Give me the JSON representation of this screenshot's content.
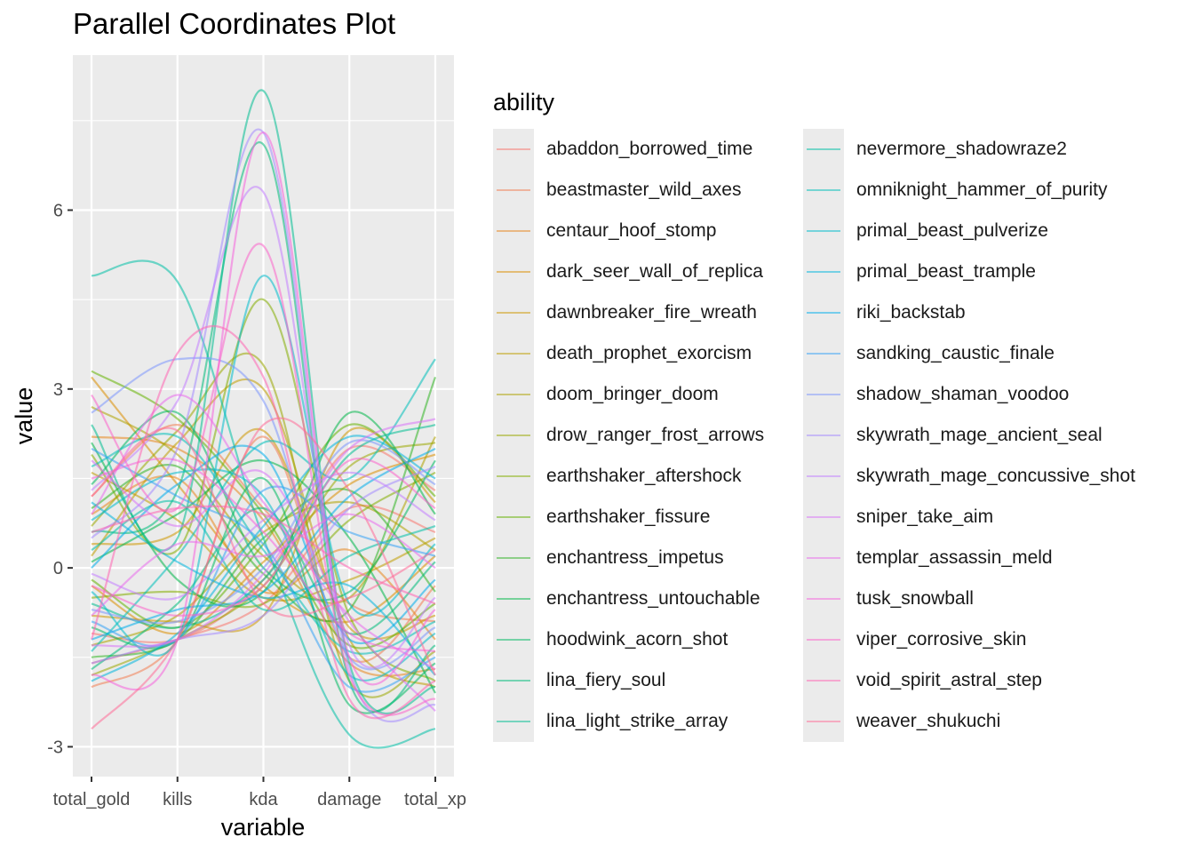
{
  "title": "Parallel Coordinates Plot",
  "chart_data": {
    "type": "line",
    "title": "Parallel Coordinates Plot",
    "xlabel": "variable",
    "ylabel": "value",
    "categories": [
      "total_gold",
      "kills",
      "kda",
      "damage",
      "total_xp"
    ],
    "yticks": [
      -3,
      0,
      3,
      6
    ],
    "ylim": [
      -3.5,
      8.6
    ],
    "grid": true,
    "legend": {
      "title": "ability",
      "placement": "right",
      "columns": 2,
      "entries": [
        "abaddon_borrowed_time",
        "beastmaster_wild_axes",
        "centaur_hoof_stomp",
        "dark_seer_wall_of_replica",
        "dawnbreaker_fire_wreath",
        "death_prophet_exorcism",
        "doom_bringer_doom",
        "drow_ranger_frost_arrows",
        "earthshaker_aftershock",
        "earthshaker_fissure",
        "enchantress_impetus",
        "enchantress_untouchable",
        "hoodwink_acorn_shot",
        "lina_fiery_soul",
        "lina_light_strike_array",
        "nevermore_shadowraze2",
        "omniknight_hammer_of_purity",
        "primal_beast_pulverize",
        "primal_beast_trample",
        "riki_backstab",
        "sandking_caustic_finale",
        "shadow_shaman_voodoo",
        "skywrath_mage_ancient_seal",
        "skywrath_mage_concussive_shot",
        "sniper_take_aim",
        "templar_assassin_meld",
        "tusk_snowball",
        "viper_corrosive_skin",
        "void_spirit_astral_step",
        "weaver_shukuchi"
      ]
    },
    "colors": [
      "#F8766D",
      "#F27D52",
      "#E7861B",
      "#DB8E00",
      "#CE9700",
      "#BF9D00",
      "#AEA200",
      "#9AA800",
      "#83AD00",
      "#64B200",
      "#31B425",
      "#00B748",
      "#00BA62",
      "#00BC7A",
      "#00BE91",
      "#00BFA6",
      "#00BFBA",
      "#00BBCC",
      "#00B5DD",
      "#00ADEB",
      "#35A2F6",
      "#7C96FE",
      "#A48AFF",
      "#C27DFF",
      "#D973F8",
      "#E96BEC",
      "#F563DD",
      "#FC62CA",
      "#FF65B3",
      "#FF6C97"
    ],
    "series": [
      {
        "name": "abaddon_borrowed_time",
        "values": [
          -1.6,
          -1.2,
          -0.6,
          1.0,
          0.6
        ]
      },
      {
        "name": "abaddon_borrowed_time",
        "values": [
          -1.1,
          -1.2,
          -0.2,
          2.0,
          1.3
        ]
      },
      {
        "name": "beastmaster_wild_axes",
        "values": [
          1.2,
          2.4,
          1.0,
          -0.6,
          -0.9
        ]
      },
      {
        "name": "beastmaster_wild_axes",
        "values": [
          -2.0,
          -1.2,
          2.2,
          -1.5,
          -0.3
        ]
      },
      {
        "name": "centaur_hoof_stomp",
        "values": [
          0.9,
          1.5,
          -0.4,
          0.3,
          -1.2
        ]
      },
      {
        "name": "centaur_hoof_stomp",
        "values": [
          2.2,
          2.0,
          0.8,
          -1.6,
          -1.7
        ]
      },
      {
        "name": "dark_seer_wall_of_replica",
        "values": [
          -0.3,
          -1.1,
          0.1,
          1.4,
          1.9
        ]
      },
      {
        "name": "dark_seer_wall_of_replica",
        "values": [
          3.2,
          1.4,
          -0.3,
          -0.9,
          0.2
        ]
      },
      {
        "name": "dawnbreaker_fire_wreath",
        "values": [
          0.4,
          0.6,
          2.3,
          -1.0,
          -0.8
        ]
      },
      {
        "name": "dawnbreaker_fire_wreath",
        "values": [
          -0.8,
          -0.9,
          -0.8,
          2.3,
          1.1
        ]
      },
      {
        "name": "death_prophet_exorcism",
        "values": [
          1.6,
          0.8,
          -0.5,
          -0.2,
          0.5
        ]
      },
      {
        "name": "death_prophet_exorcism",
        "values": [
          0.2,
          2.1,
          3.0,
          -1.2,
          -2.0
        ]
      },
      {
        "name": "doom_bringer_doom",
        "values": [
          2.7,
          1.9,
          0.2,
          -0.5,
          2.2
        ]
      },
      {
        "name": "doom_bringer_doom",
        "values": [
          -1.3,
          -0.8,
          0.6,
          1.1,
          0.3
        ]
      },
      {
        "name": "drow_ranger_frost_arrows",
        "values": [
          0.7,
          2.3,
          3.4,
          -1.9,
          -1.4
        ]
      },
      {
        "name": "drow_ranger_frost_arrows",
        "values": [
          -1.8,
          -1.2,
          -0.3,
          1.7,
          2.1
        ]
      },
      {
        "name": "earthshaker_aftershock",
        "values": [
          1.9,
          0.3,
          4.5,
          -0.8,
          -1.9
        ]
      },
      {
        "name": "earthshaker_aftershock",
        "values": [
          -0.5,
          -0.4,
          -0.6,
          0.8,
          1.6
        ]
      },
      {
        "name": "earthshaker_fissure",
        "values": [
          3.3,
          2.5,
          0.9,
          -1.3,
          -0.6
        ]
      },
      {
        "name": "earthshaker_fissure",
        "values": [
          -0.2,
          -1.0,
          0.4,
          2.4,
          1.2
        ]
      },
      {
        "name": "enchantress_impetus",
        "values": [
          1.0,
          1.7,
          -0.1,
          -0.7,
          3.2
        ]
      },
      {
        "name": "enchantress_impetus",
        "values": [
          -1.5,
          -1.2,
          0.5,
          1.3,
          -0.4
        ]
      },
      {
        "name": "enchantress_untouchable",
        "values": [
          0.1,
          0.9,
          1.8,
          0.5,
          -2.1
        ]
      },
      {
        "name": "enchantress_untouchable",
        "values": [
          2.1,
          -0.2,
          -0.4,
          2.6,
          0.9
        ]
      },
      {
        "name": "hoodwink_acorn_shot",
        "values": [
          -1.0,
          -1.2,
          1.5,
          -2.3,
          -1.6
        ]
      },
      {
        "name": "hoodwink_acorn_shot",
        "values": [
          1.4,
          2.6,
          0.0,
          -0.4,
          1.8
        ]
      },
      {
        "name": "lina_fiery_soul",
        "values": [
          -1.7,
          -0.6,
          1.0,
          -1.1,
          0.1
        ]
      },
      {
        "name": "lina_fiery_soul",
        "values": [
          0.6,
          1.3,
          7.1,
          -1.9,
          -1.3
        ]
      },
      {
        "name": "lina_light_strike_array",
        "values": [
          2.4,
          0.5,
          8.0,
          -1.6,
          -2.0
        ]
      },
      {
        "name": "lina_light_strike_array",
        "values": [
          -0.6,
          -1.0,
          -0.2,
          1.9,
          2.4
        ]
      },
      {
        "name": "nevermore_shadowraze2",
        "values": [
          4.9,
          4.8,
          0.5,
          -2.8,
          -2.7
        ]
      },
      {
        "name": "nevermore_shadowraze2",
        "values": [
          0.3,
          1.1,
          -0.7,
          0.2,
          0.7
        ]
      },
      {
        "name": "omniknight_hammer_of_purity",
        "values": [
          -1.4,
          0.2,
          2.1,
          1.5,
          3.5
        ]
      },
      {
        "name": "omniknight_hammer_of_purity",
        "values": [
          1.7,
          2.2,
          0.3,
          -1.4,
          -0.9
        ]
      },
      {
        "name": "primal_beast_pulverize",
        "values": [
          -0.4,
          -1.2,
          4.9,
          -0.6,
          0.4
        ]
      },
      {
        "name": "primal_beast_pulverize",
        "values": [
          0.8,
          1.6,
          1.2,
          -1.8,
          -1.1
        ]
      },
      {
        "name": "primal_beast_trample",
        "values": [
          -1.9,
          -1.1,
          0.7,
          2.2,
          1.5
        ]
      },
      {
        "name": "primal_beast_trample",
        "values": [
          1.1,
          0.1,
          -0.5,
          -0.3,
          -1.8
        ]
      },
      {
        "name": "riki_backstab",
        "values": [
          0.0,
          1.4,
          1.9,
          -1.2,
          -0.2
        ]
      },
      {
        "name": "riki_backstab",
        "values": [
          -1.2,
          -0.7,
          -0.4,
          1.2,
          2.0
        ]
      },
      {
        "name": "sandking_caustic_finale",
        "values": [
          2.0,
          1.2,
          0.4,
          -2.0,
          -1.5
        ]
      },
      {
        "name": "sandking_caustic_finale",
        "values": [
          -0.9,
          -1.2,
          1.3,
          0.6,
          0.2
        ]
      },
      {
        "name": "shadow_shaman_voodoo",
        "values": [
          2.6,
          3.5,
          2.8,
          -1.5,
          -1.0
        ]
      },
      {
        "name": "shadow_shaman_voodoo",
        "values": [
          -0.7,
          -0.9,
          0.0,
          2.1,
          1.4
        ]
      },
      {
        "name": "skywrath_mage_ancient_seal",
        "values": [
          0.5,
          2.0,
          7.3,
          -1.7,
          -2.3
        ]
      },
      {
        "name": "skywrath_mage_ancient_seal",
        "values": [
          -1.6,
          -1.2,
          -0.8,
          1.0,
          1.7
        ]
      },
      {
        "name": "skywrath_mage_concussive_shot",
        "values": [
          1.3,
          2.8,
          6.3,
          -1.3,
          -0.5
        ]
      },
      {
        "name": "skywrath_mage_concussive_shot",
        "values": [
          -0.1,
          -0.5,
          0.8,
          1.6,
          0.8
        ]
      },
      {
        "name": "sniper_take_aim",
        "values": [
          1.8,
          0.7,
          1.6,
          -0.9,
          -2.4
        ]
      },
      {
        "name": "sniper_take_aim",
        "values": [
          -1.3,
          -1.2,
          -0.1,
          2.0,
          2.5
        ]
      },
      {
        "name": "templar_assassin_meld",
        "values": [
          0.9,
          2.9,
          1.1,
          -0.8,
          -1.7
        ]
      },
      {
        "name": "templar_assassin_meld",
        "values": [
          -0.8,
          0.4,
          0.2,
          0.9,
          0.0
        ]
      },
      {
        "name": "tusk_snowball",
        "values": [
          -1.8,
          -1.2,
          7.3,
          -1.5,
          -0.7
        ]
      },
      {
        "name": "tusk_snowball",
        "values": [
          1.5,
          1.8,
          0.6,
          -1.1,
          -1.4
        ]
      },
      {
        "name": "viper_corrosive_skin",
        "values": [
          2.9,
          1.0,
          5.4,
          -1.8,
          -2.2
        ]
      },
      {
        "name": "viper_corrosive_skin",
        "values": [
          -0.3,
          -0.8,
          -0.3,
          1.8,
          1.0
        ]
      },
      {
        "name": "void_spirit_astral_step",
        "values": [
          -1.2,
          3.6,
          3.2,
          -2.2,
          -1.9
        ]
      },
      {
        "name": "void_spirit_astral_step",
        "values": [
          0.6,
          1.0,
          0.9,
          0.0,
          -0.6
        ]
      },
      {
        "name": "weaver_shukuchi",
        "values": [
          -2.7,
          -1.2,
          2.4,
          1.3,
          -1.8
        ]
      },
      {
        "name": "weaver_shukuchi",
        "values": [
          1.2,
          2.3,
          -0.6,
          -0.5,
          0.3
        ]
      }
    ]
  }
}
